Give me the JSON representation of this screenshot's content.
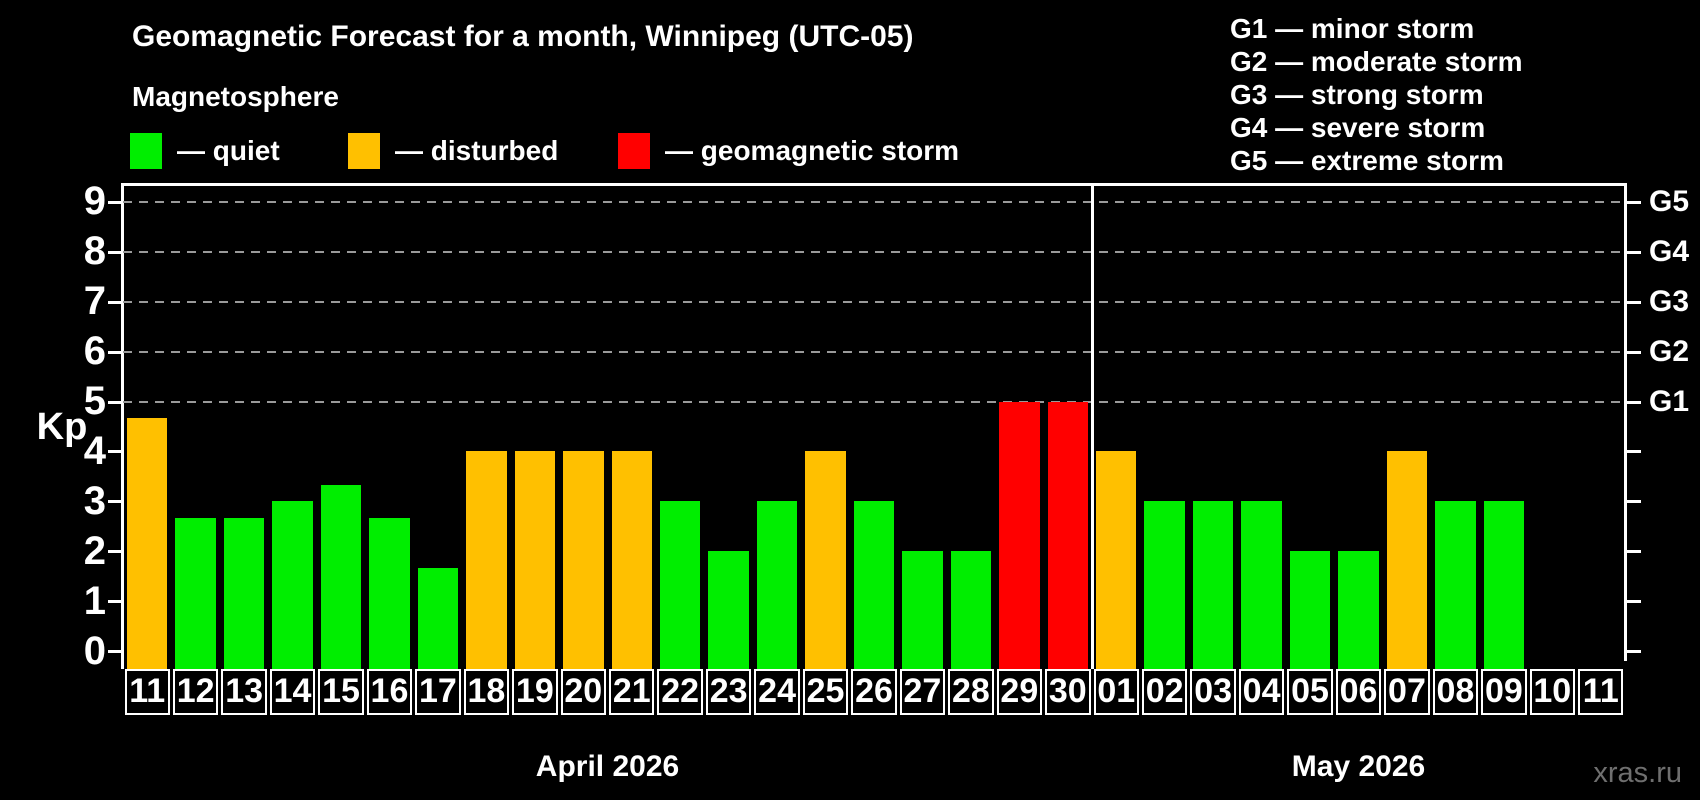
{
  "title": "Geomagnetic Forecast for a month, Winnipeg (UTC-05)",
  "subtitle": "Magnetosphere",
  "watermark": "xras.ru",
  "colors": {
    "quiet": "#00ee00",
    "disturbed": "#ffc000",
    "storm": "#ff0000",
    "grid": "#9a9a9a",
    "axis": "#ffffff",
    "background": "#000000"
  },
  "legend": [
    {
      "state": "quiet",
      "label": "— quiet"
    },
    {
      "state": "disturbed",
      "label": "— disturbed"
    },
    {
      "state": "storm",
      "label": "— geomagnetic storm"
    }
  ],
  "g_legend": [
    "G1 — minor storm",
    "G2 — moderate storm",
    "G3 — strong storm",
    "G4 — severe storm",
    "G5 — extreme storm"
  ],
  "axes": {
    "y_label": "Kp",
    "y_ticks": [
      "0",
      "1",
      "2",
      "3",
      "4",
      "5",
      "6",
      "7",
      "8",
      "9"
    ],
    "right_labels": [
      {
        "text": "G1",
        "kp": 5
      },
      {
        "text": "G2",
        "kp": 6
      },
      {
        "text": "G3",
        "kp": 7
      },
      {
        "text": "G4",
        "kp": 8
      },
      {
        "text": "G5",
        "kp": 9
      }
    ],
    "months": [
      {
        "label": "April 2026",
        "num_days": 20
      },
      {
        "label": "May 2026",
        "num_days": 11
      }
    ]
  },
  "chart_data": {
    "type": "bar",
    "title": "Geomagnetic Forecast for a month, Winnipeg (UTC-05)",
    "xlabel": "",
    "ylabel": "Kp",
    "ylim": [
      0,
      9
    ],
    "grid": "dashed horizontal lines at Kp 5,6,7,8,9",
    "legend_position": "top-left",
    "categories": [
      "Apr 11",
      "Apr 12",
      "Apr 13",
      "Apr 14",
      "Apr 15",
      "Apr 16",
      "Apr 17",
      "Apr 18",
      "Apr 19",
      "Apr 20",
      "Apr 21",
      "Apr 22",
      "Apr 23",
      "Apr 24",
      "Apr 25",
      "Apr 26",
      "Apr 27",
      "Apr 28",
      "Apr 29",
      "Apr 30",
      "May 01",
      "May 02",
      "May 03",
      "May 04",
      "May 05",
      "May 06",
      "May 07",
      "May 08",
      "May 09",
      "May 10",
      "May 11"
    ],
    "day_labels": [
      "11",
      "12",
      "13",
      "14",
      "15",
      "16",
      "17",
      "18",
      "19",
      "20",
      "21",
      "22",
      "23",
      "24",
      "25",
      "26",
      "27",
      "28",
      "29",
      "30",
      "01",
      "02",
      "03",
      "04",
      "05",
      "06",
      "07",
      "08",
      "09",
      "10",
      "11"
    ],
    "values": [
      4.67,
      2.67,
      2.67,
      3,
      3.33,
      2.67,
      1.67,
      4,
      4,
      4,
      4,
      3,
      2,
      3,
      4,
      3,
      2,
      2,
      5,
      5,
      4,
      3,
      3,
      3,
      2,
      2,
      4,
      3,
      3,
      null,
      null
    ],
    "states": [
      "disturbed",
      "quiet",
      "quiet",
      "quiet",
      "quiet",
      "quiet",
      "quiet",
      "disturbed",
      "disturbed",
      "disturbed",
      "disturbed",
      "quiet",
      "quiet",
      "quiet",
      "disturbed",
      "quiet",
      "quiet",
      "quiet",
      "storm",
      "storm",
      "disturbed",
      "quiet",
      "quiet",
      "quiet",
      "quiet",
      "quiet",
      "disturbed",
      "quiet",
      "quiet",
      null,
      null
    ]
  }
}
